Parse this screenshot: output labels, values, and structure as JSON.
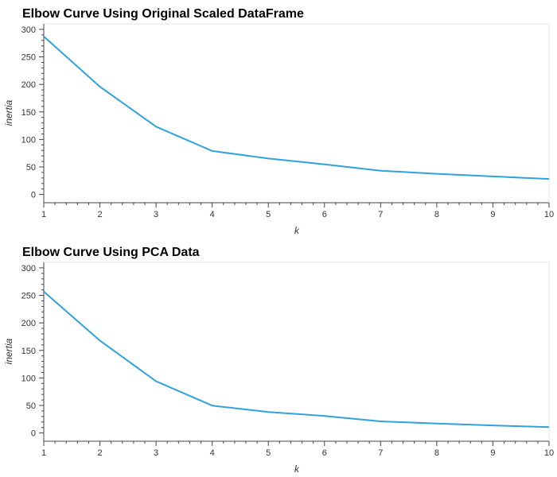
{
  "chart_data": [
    {
      "type": "line",
      "title": "Elbow Curve Using Original Scaled DataFrame",
      "xlabel": "k",
      "ylabel": "inertia",
      "x": [
        1,
        2,
        3,
        4,
        5,
        6,
        7,
        8,
        9,
        10
      ],
      "series": [
        {
          "color": "#30a2da",
          "values": [
            287.0,
            195.8,
            123.2,
            79.0,
            65.3,
            54.7,
            43.2,
            37.6,
            32.8,
            28.2
          ]
        }
      ],
      "xlim": [
        1,
        10
      ],
      "ylim": [
        -15,
        310
      ],
      "yticks": [
        0,
        50,
        100,
        150,
        200,
        250,
        300
      ],
      "xticks": [
        1,
        2,
        3,
        4,
        5,
        6,
        7,
        8,
        9,
        10
      ],
      "grid": false,
      "legend": "none"
    },
    {
      "type": "line",
      "title": "Elbow Curve Using PCA Data",
      "xlabel": "k",
      "ylabel": "inertia",
      "x": [
        1,
        2,
        3,
        4,
        5,
        6,
        7,
        8,
        9,
        10
      ],
      "series": [
        {
          "color": "#30a2da",
          "values": [
            256.9,
            167.7,
            93.9,
            49.7,
            38.1,
            31.0,
            21.1,
            17.1,
            13.7,
            10.6
          ]
        }
      ],
      "xlim": [
        1,
        10
      ],
      "ylim": [
        -15,
        310
      ],
      "yticks": [
        0,
        50,
        100,
        150,
        200,
        250,
        300
      ],
      "xticks": [
        1,
        2,
        3,
        4,
        5,
        6,
        7,
        8,
        9,
        10
      ],
      "grid": false,
      "legend": "none"
    }
  ]
}
